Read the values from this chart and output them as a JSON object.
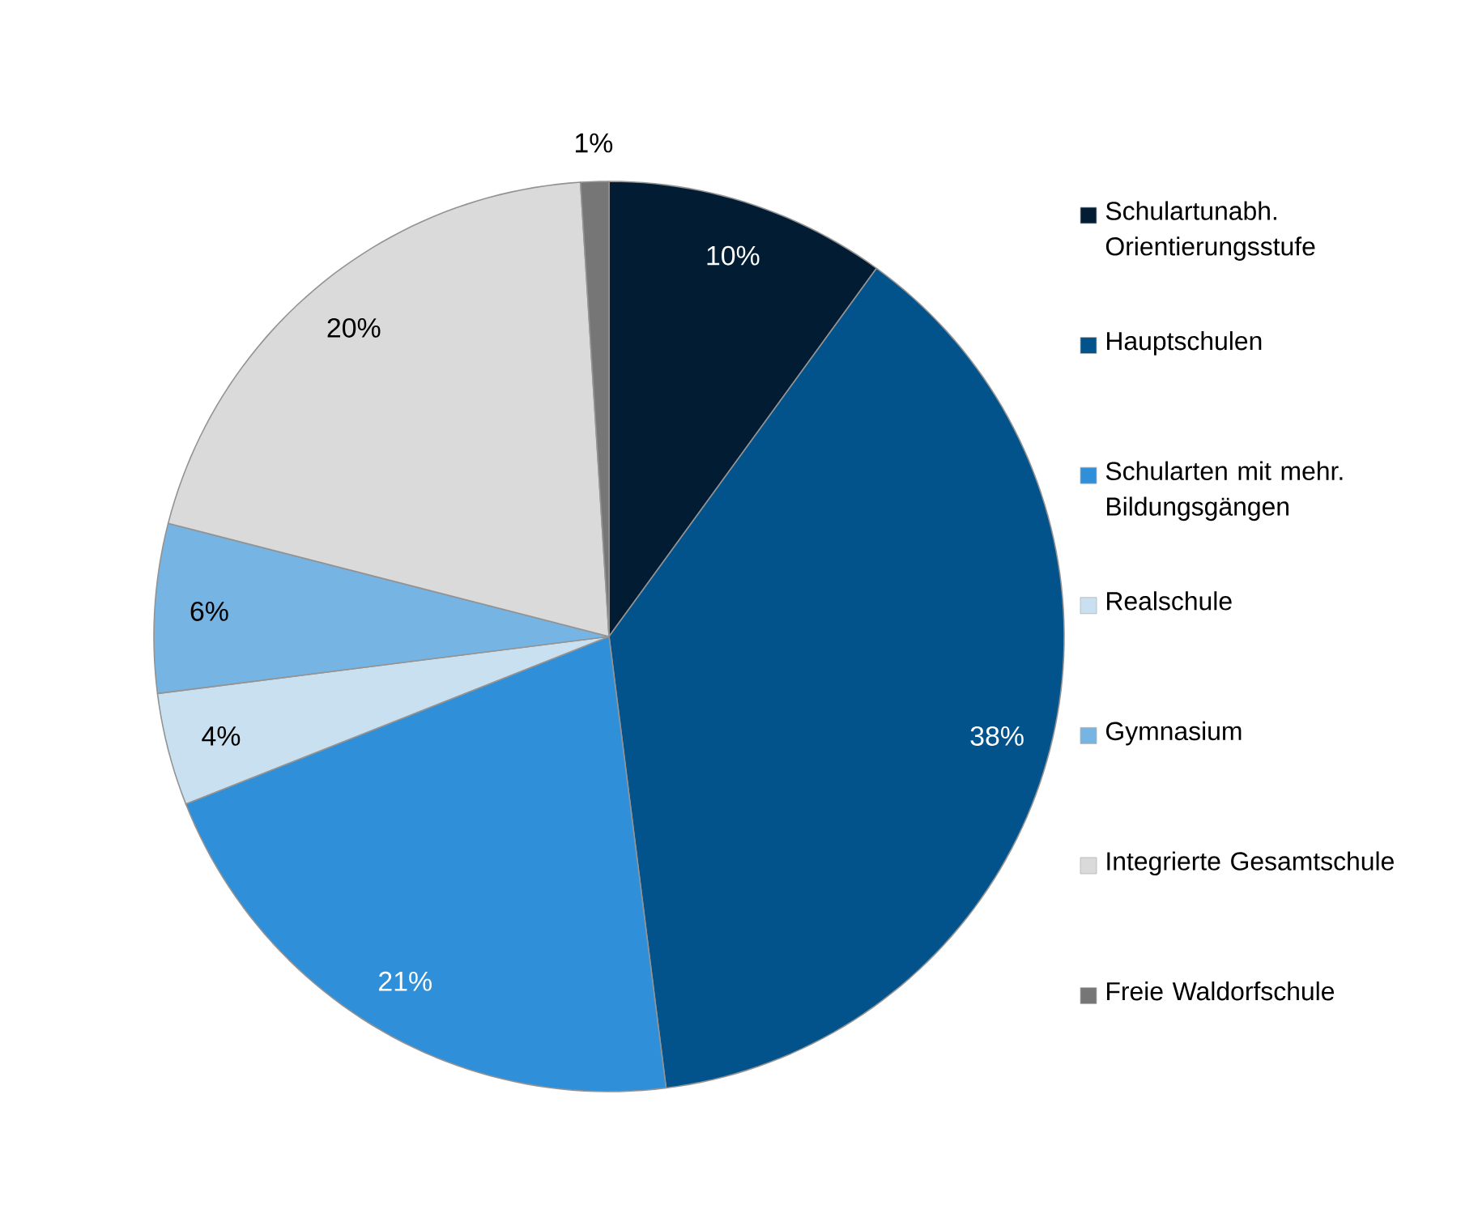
{
  "chart_data": {
    "type": "pie",
    "categories": [
      "Schulartunabh. Orientierungsstufe",
      "Hauptschulen",
      "Schularten mit mehr. Bildungsgängen",
      "Realschule",
      "Gymnasium",
      "Integrierte Gesamtschule",
      "Freie Waldorfschule"
    ],
    "values": [
      10,
      38,
      21,
      4,
      6,
      20,
      1
    ],
    "value_labels": [
      "10%",
      "38%",
      "21%",
      "4%",
      "6%",
      "20%",
      "1%"
    ],
    "colors": [
      "#021d33",
      "#02528c",
      "#2f8fd8",
      "#c9e0f1",
      "#76b4e3",
      "#dadada",
      "#767676"
    ],
    "legend": "right"
  }
}
